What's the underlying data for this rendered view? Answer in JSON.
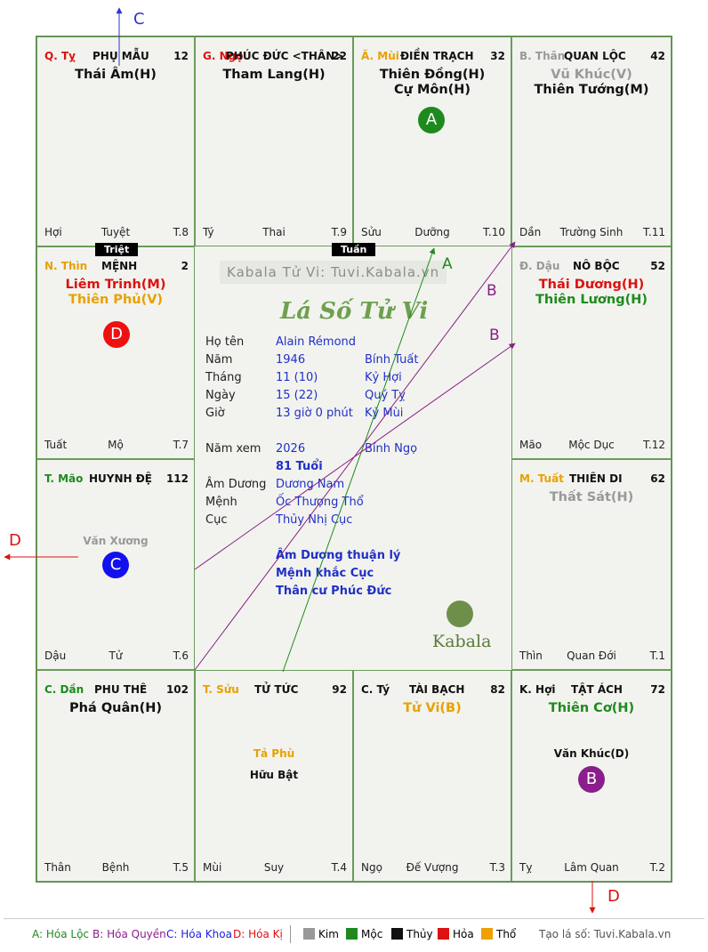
{
  "cells": [
    {
      "id": "c1",
      "can": "Q. Tỵ",
      "can_color": "#dd1111",
      "name": "PHỤ MẪU",
      "num": "12",
      "stars": [
        {
          "t": "Thái Âm(H)",
          "c": "#111111"
        }
      ],
      "minor": [],
      "foot_l": "Hợi",
      "foot_m": "Tuyệt",
      "foot_r": "T.8"
    },
    {
      "id": "c2",
      "can": "G. Ngọ",
      "can_color": "#dd1111",
      "name": "PHÚC ĐỨC <THÂN>",
      "num": "22",
      "stars": [
        {
          "t": "Tham Lang(H)",
          "c": "#111111"
        }
      ],
      "minor": [],
      "foot_l": "Tý",
      "foot_m": "Thai",
      "foot_r": "T.9"
    },
    {
      "id": "c3",
      "can": "Ã. Mùi",
      "can_color": "#e8a000",
      "name": "ĐIỀN TRẠCH",
      "num": "32",
      "stars": [
        {
          "t": "Thiên Đồng(H)",
          "c": "#111111"
        },
        {
          "t": "Cự Môn(H)",
          "c": "#111111"
        }
      ],
      "minor": [],
      "foot_l": "Sửu",
      "foot_m": "Dưỡng",
      "foot_r": "T.10"
    },
    {
      "id": "c4",
      "can": "B. Thân",
      "can_color": "#999999",
      "name": "QUAN LỘC",
      "num": "42",
      "stars": [
        {
          "t": "Vũ Khúc(V)",
          "c": "#999999"
        },
        {
          "t": "Thiên Tướng(M)",
          "c": "#111111"
        }
      ],
      "minor": [],
      "foot_l": "Dần",
      "foot_m": "Trường Sinh",
      "foot_r": "T.11"
    },
    {
      "id": "c5",
      "can": "N. Thìn",
      "can_color": "#e8a000",
      "name": "MỆNH",
      "num": "2",
      "stars": [
        {
          "t": "Liêm Trinh(M)",
          "c": "#dd1111"
        },
        {
          "t": "Thiên Phủ(V)",
          "c": "#e8a000"
        }
      ],
      "minor": [],
      "foot_l": "Tuất",
      "foot_m": "Mộ",
      "foot_r": "T.7"
    },
    {
      "id": "c6",
      "can": "Đ. Dậu",
      "can_color": "#999999",
      "name": "NÔ BỘC",
      "num": "52",
      "stars": [
        {
          "t": "Thái Dương(H)",
          "c": "#dd1111"
        },
        {
          "t": "Thiên Lương(H)",
          "c": "#1e8a1e"
        }
      ],
      "minor": [],
      "foot_l": "Mão",
      "foot_m": "Mộc Dục",
      "foot_r": "T.12"
    },
    {
      "id": "c7",
      "can": "T. Mão",
      "can_color": "#1e8a1e",
      "name": "HUYNH ĐỆ",
      "num": "112",
      "stars": [],
      "minor": [
        {
          "t": "Văn Xương",
          "c": "#999999"
        }
      ],
      "foot_l": "Dậu",
      "foot_m": "Tử",
      "foot_r": "T.6"
    },
    {
      "id": "c8",
      "can": "M. Tuất",
      "can_color": "#e8a000",
      "name": "THIÊN DI",
      "num": "62",
      "stars": [
        {
          "t": "Thất Sát(H)",
          "c": "#999999"
        }
      ],
      "minor": [],
      "foot_l": "Thìn",
      "foot_m": "Quan Đới",
      "foot_r": "T.1"
    },
    {
      "id": "c9",
      "can": "C. Dần",
      "can_color": "#1e8a1e",
      "name": "PHU THÊ",
      "num": "102",
      "stars": [
        {
          "t": "Phá Quân(H)",
          "c": "#111111"
        }
      ],
      "minor": [],
      "foot_l": "Thân",
      "foot_m": "Bệnh",
      "foot_r": "T.5"
    },
    {
      "id": "c10",
      "can": "T. Sửu",
      "can_color": "#e8a000",
      "name": "TỬ TỨC",
      "num": "92",
      "stars": [],
      "minor": [
        {
          "t": "Tả Phù",
          "c": "#e8a000"
        },
        {
          "t": "Hữu Bật",
          "c": "#111111"
        }
      ],
      "foot_l": "Mùi",
      "foot_m": "Suy",
      "foot_r": "T.4"
    },
    {
      "id": "c11",
      "can": "C. Tý",
      "can_color": "#111111",
      "name": "TÀI BẠCH",
      "num": "82",
      "stars": [
        {
          "t": "Tử Vi(B)",
          "c": "#e8a000"
        }
      ],
      "minor": [],
      "foot_l": "Ngọ",
      "foot_m": "Đế Vượng",
      "foot_r": "T.3"
    },
    {
      "id": "c12",
      "can": "K. Hợi",
      "can_color": "#111111",
      "name": "TẬT ÁCH",
      "num": "72",
      "stars": [
        {
          "t": "Thiên Cơ(H)",
          "c": "#1e8a1e"
        }
      ],
      "minor": [
        {
          "t": "Văn Khúc(D)",
          "c": "#111111"
        }
      ],
      "foot_l": "Tỵ",
      "foot_m": "Lâm Quan",
      "foot_r": "T.2"
    }
  ],
  "tags": {
    "triet": "Triệt",
    "tuan": "Tuần"
  },
  "badges": {
    "a": "A",
    "b": "B",
    "c": "C",
    "d": "D"
  },
  "arrow_labels": {
    "c_top": "C",
    "a": "A",
    "b1": "B",
    "b2": "B",
    "d_left": "D",
    "d_bottom": "D"
  },
  "center": {
    "watermark": "Kabala Tử Vi: Tuvi.Kabala.vn",
    "title": "Lá Số Tử Vi",
    "rows": [
      {
        "l": "Họ tên",
        "v1": "Alain Rémond",
        "v2": ""
      },
      {
        "l": "Năm",
        "v1": "1946",
        "v2": "Bính Tuất"
      },
      {
        "l": "Tháng",
        "v1": "11  (10)",
        "v2": "Kỷ Hợi"
      },
      {
        "l": "Ngày",
        "v1": "15  (22)",
        "v2": "Quý Tỵ"
      },
      {
        "l": "Giờ",
        "v1": "13 giờ 0 phút",
        "v2": "Kỷ Mùi"
      }
    ],
    "nam_xem_label": "Năm xem",
    "nam_xem": "2026",
    "nam_xem_can": "Bính Ngọ",
    "tuoi": "81 Tuổi",
    "rows2": [
      {
        "l": "Âm Dương",
        "v1": "Dương Nam"
      },
      {
        "l": "Mệnh",
        "v1": "Ốc Thượng Thổ"
      },
      {
        "l": "Cục",
        "v1": "Thủy Nhị Cục"
      }
    ],
    "notes": [
      "Âm Dương thuận lý",
      "Mệnh khắc Cục",
      "Thân cư Phúc Đức"
    ],
    "brand": "Kabala"
  },
  "legend": {
    "a": "A: Hóa Lộc",
    "b": "B: Hóa Quyền",
    "c": "C: Hóa Khoa",
    "d": "D: Hóa Kị",
    "kim": "Kim",
    "moc": "Mộc",
    "thuy": "Thủy",
    "hoa": "Hỏa",
    "tho": "Thổ",
    "site": "Tạo lá số: Tuvi.Kabala.vn"
  },
  "colors": {
    "kim": "#999999",
    "moc": "#1e8a1e",
    "thuy": "#111111",
    "hoa": "#dd1111",
    "tho": "#f0a000",
    "a": "#1e8a1e",
    "b": "#8a1e8a",
    "c": "#2020dd",
    "d": "#dd1111"
  }
}
